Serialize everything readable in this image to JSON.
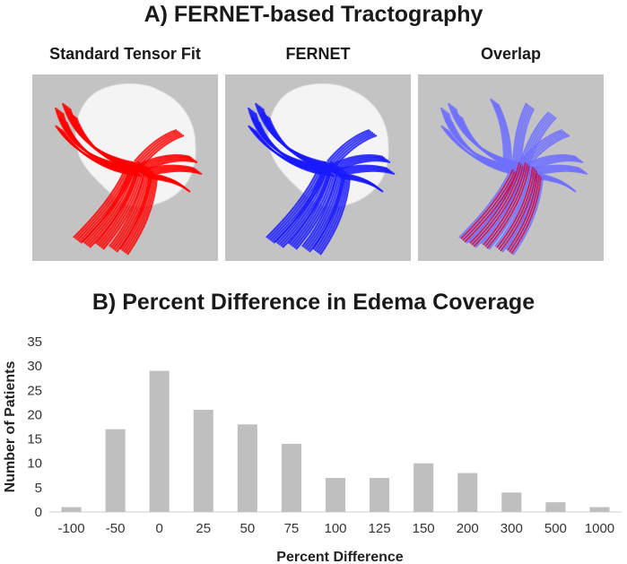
{
  "figure": {
    "title_a": "A) FERNET-based Tractography",
    "panels": [
      {
        "label": "Standard Tensor Fit",
        "fiber_color": "#ff0000",
        "style": "standard"
      },
      {
        "label": "FERNET",
        "fiber_color": "#1a1aff",
        "style": "fernet"
      },
      {
        "label": "Overlap",
        "fiber_color": "#7070ff",
        "style": "overlap"
      }
    ],
    "title_b": "B) Percent Difference in Edema Coverage"
  },
  "chart_data": {
    "type": "bar",
    "title": "B) Percent Difference in Edema Coverage",
    "xlabel": "Percent Difference",
    "ylabel": "Number of Patients",
    "categories": [
      "-100",
      "-50",
      "0",
      "25",
      "50",
      "75",
      "100",
      "125",
      "150",
      "200",
      "300",
      "500",
      "1000"
    ],
    "values": [
      1,
      17,
      29,
      21,
      18,
      14,
      7,
      7,
      10,
      8,
      4,
      2,
      1
    ],
    "ylim": [
      0,
      35
    ],
    "yticks": [
      0,
      5,
      10,
      15,
      20,
      25,
      30,
      35
    ],
    "bar_color": "#bfbfbf",
    "grid": false
  }
}
